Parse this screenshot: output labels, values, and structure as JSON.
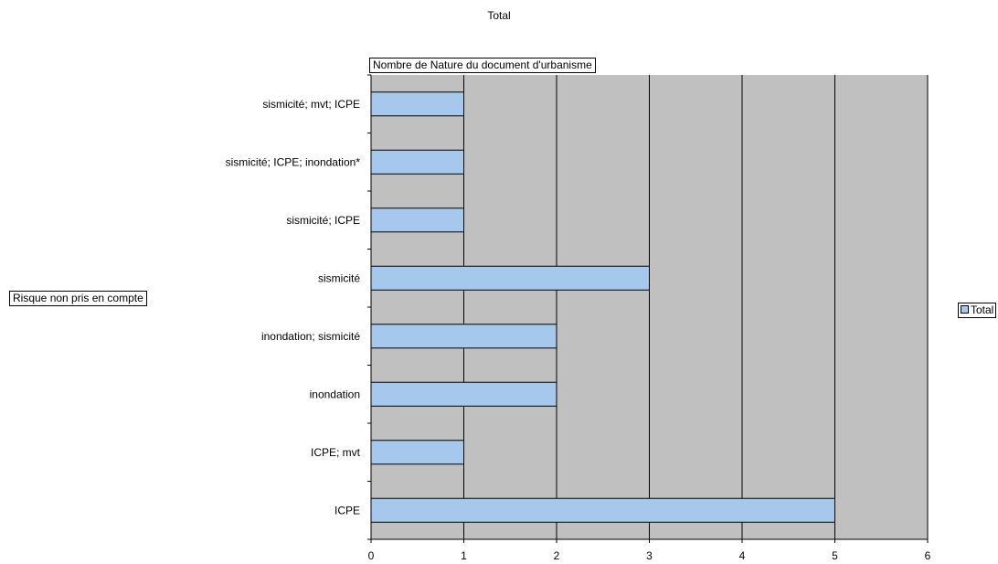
{
  "chart_data": {
    "type": "bar",
    "orientation": "horizontal",
    "title": "Total",
    "pivot_field_data": "Nombre de Nature du document d'urbanisme",
    "pivot_field_row": "Risque non pris en compte",
    "categories": [
      "ICPE",
      "ICPE; mvt",
      "inondation",
      "inondation; sismicité",
      "sismicité",
      "sismicité; ICPE",
      "sismicité; ICPE; inondation*",
      "sismicité; mvt; ICPE"
    ],
    "series": [
      {
        "name": "Total",
        "values": [
          5,
          1,
          2,
          2,
          3,
          1,
          1,
          1
        ]
      }
    ],
    "xlim": [
      0,
      6
    ],
    "xticks": [
      "0",
      "1",
      "2",
      "3",
      "4",
      "5",
      "6"
    ],
    "grid": true,
    "legend": "right",
    "colors": {
      "bar": "#a6c8ec",
      "plot_bg": "#c0c0c0",
      "grid": "#000000"
    }
  }
}
